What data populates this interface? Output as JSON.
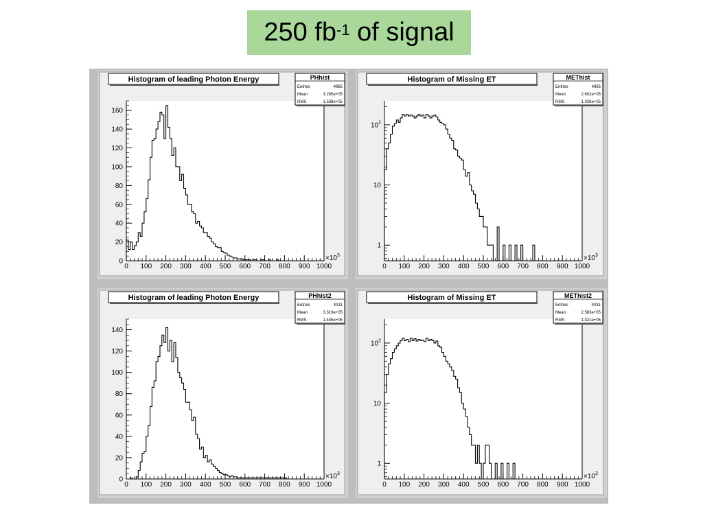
{
  "slide": {
    "title_main": "250 fb",
    "title_sup": "-1",
    "title_rest": " of signal"
  },
  "chart_data": [
    {
      "type": "bar",
      "title": "Histogram of leading Photon Energy",
      "stats": {
        "name": "PHhist",
        "entries_label": "Entries",
        "entries": "4995",
        "mean_label": "Mean",
        "mean": "3.265e+05",
        "rms_label": "RMS",
        "rms": "1.538e+05"
      },
      "xlim": [
        0,
        1000
      ],
      "x_multiplier": "×10",
      "x_multiplier_exp": "3",
      "yscale": "linear",
      "ylim": [
        0,
        170
      ],
      "yticks": [
        0,
        20,
        40,
        60,
        80,
        100,
        120,
        140,
        160
      ],
      "xticks": [
        0,
        100,
        200,
        300,
        400,
        500,
        600,
        700,
        800,
        900,
        1000
      ],
      "bin_width": 10,
      "values": [
        22,
        12,
        20,
        12,
        16,
        20,
        30,
        26,
        40,
        52,
        66,
        86,
        110,
        128,
        130,
        140,
        148,
        158,
        155,
        130,
        165,
        142,
        130,
        112,
        120,
        100,
        100,
        85,
        92,
        77,
        70,
        60,
        60,
        52,
        50,
        40,
        42,
        37,
        35,
        30,
        30,
        26,
        24,
        20,
        18,
        15,
        14,
        14,
        10,
        9,
        8,
        6,
        5,
        4,
        3,
        3,
        2,
        2,
        2,
        1,
        1,
        1,
        1,
        0,
        1,
        1,
        0,
        0,
        1,
        1,
        0,
        0,
        1,
        0,
        0,
        0,
        1,
        0,
        0,
        0,
        0,
        0,
        0,
        0,
        0,
        0,
        0,
        0,
        0,
        0,
        0,
        0,
        0,
        0,
        0,
        0,
        0,
        0,
        0,
        0
      ]
    },
    {
      "type": "bar",
      "title": "Histogram of Missing ET",
      "stats": {
        "name": "METhist",
        "entries_label": "Entries",
        "entries": "4995",
        "mean_label": "Mean",
        "mean": "2.602e+05",
        "rms_label": "RMS",
        "rms": "1.326e+05"
      },
      "xlim": [
        0,
        1000
      ],
      "x_multiplier": "×10",
      "x_multiplier_exp": "3",
      "yscale": "log",
      "ylim": [
        0.55,
        250
      ],
      "yticks": [
        {
          "value": 1,
          "label": "1",
          "sup": ""
        },
        {
          "value": 10,
          "label": "10",
          "sup": ""
        },
        {
          "value": 100,
          "label": "10",
          "sup": "2"
        }
      ],
      "xticks": [
        0,
        100,
        200,
        300,
        400,
        500,
        600,
        700,
        800,
        900,
        1000
      ],
      "bin_width": 10,
      "values": [
        18,
        40,
        50,
        70,
        95,
        105,
        120,
        110,
        130,
        150,
        140,
        150,
        140,
        145,
        140,
        130,
        140,
        150,
        140,
        145,
        130,
        150,
        140,
        130,
        140,
        145,
        135,
        120,
        110,
        105,
        100,
        85,
        70,
        60,
        55,
        40,
        38,
        30,
        28,
        26,
        18,
        14,
        16,
        10,
        8,
        7,
        5,
        4,
        3,
        3,
        2,
        2,
        1,
        1,
        1,
        0,
        0,
        2,
        0,
        0,
        1,
        0,
        0,
        1,
        0,
        0,
        1,
        0,
        0,
        1,
        0,
        0,
        0,
        0,
        0,
        1,
        0,
        0,
        0,
        0,
        0,
        0,
        0,
        0,
        0,
        0,
        0,
        0,
        0,
        0,
        0,
        0,
        0,
        0,
        0,
        0,
        0,
        0,
        0,
        0
      ]
    },
    {
      "type": "bar",
      "title": "Histogram of leading Photon Energy",
      "stats": {
        "name": "PHhist2",
        "entries_label": "Entries",
        "entries": "4031",
        "mean_label": "Mean",
        "mean": "3.319e+05",
        "rms_label": "RMS",
        "rms": "1.445e+05"
      },
      "xlim": [
        0,
        1000
      ],
      "x_multiplier": "×10",
      "x_multiplier_exp": "3",
      "yscale": "linear",
      "ylim": [
        0,
        150
      ],
      "yticks": [
        0,
        20,
        40,
        60,
        80,
        100,
        120,
        140
      ],
      "xticks": [
        0,
        100,
        200,
        300,
        400,
        500,
        600,
        700,
        800,
        900,
        1000
      ],
      "bin_width": 10,
      "values": [
        0,
        0,
        1,
        0,
        0,
        2,
        8,
        16,
        24,
        26,
        40,
        50,
        68,
        86,
        92,
        110,
        115,
        125,
        135,
        128,
        142,
        120,
        130,
        110,
        128,
        114,
        100,
        95,
        90,
        84,
        72,
        72,
        65,
        55,
        58,
        42,
        38,
        28,
        30,
        20,
        22,
        16,
        18,
        14,
        12,
        10,
        8,
        6,
        5,
        4,
        4,
        3,
        2,
        3,
        2,
        2,
        1,
        1,
        1,
        1,
        1,
        1,
        1,
        1,
        1,
        1,
        1,
        1,
        1,
        1,
        1,
        1,
        1,
        1,
        1,
        1,
        1,
        1,
        1,
        1,
        1,
        0,
        0,
        0,
        0,
        0,
        0,
        0,
        0,
        0,
        0,
        0,
        0,
        0,
        0,
        0,
        0,
        0,
        0,
        0
      ]
    },
    {
      "type": "bar",
      "title": "Histogram of Missing ET",
      "stats": {
        "name": "METhist2",
        "entries_label": "Entries",
        "entries": "4031",
        "mean_label": "Mean",
        "mean": "2.583e+05",
        "rms_label": "RMS",
        "rms": "1.321e+05"
      },
      "xlim": [
        0,
        1000
      ],
      "x_multiplier": "×10",
      "x_multiplier_exp": "3",
      "yscale": "log",
      "ylim": [
        0.55,
        250
      ],
      "yticks": [
        {
          "value": 1,
          "label": "1",
          "sup": ""
        },
        {
          "value": 10,
          "label": "10",
          "sup": ""
        },
        {
          "value": 100,
          "label": "10",
          "sup": "2"
        }
      ],
      "xticks": [
        0,
        100,
        200,
        300,
        400,
        500,
        600,
        700,
        800,
        900,
        1000
      ],
      "bin_width": 10,
      "values": [
        15,
        30,
        45,
        55,
        70,
        80,
        90,
        100,
        110,
        120,
        110,
        115,
        105,
        120,
        110,
        118,
        108,
        115,
        110,
        112,
        105,
        120,
        110,
        115,
        110,
        100,
        108,
        90,
        85,
        70,
        60,
        50,
        45,
        40,
        35,
        28,
        25,
        18,
        15,
        10,
        8,
        6,
        4,
        3,
        2,
        2,
        1,
        2,
        1,
        0,
        1,
        2,
        2,
        1,
        0,
        0,
        1,
        0,
        0,
        1,
        0,
        0,
        1,
        0,
        0,
        1,
        0,
        0,
        0,
        0,
        0,
        0,
        0,
        0,
        0,
        0,
        0,
        0,
        0,
        0,
        0,
        0,
        0,
        0,
        0,
        0,
        0,
        0,
        0,
        0,
        0,
        0,
        0,
        0,
        0,
        0,
        0,
        0,
        0,
        0
      ]
    }
  ]
}
